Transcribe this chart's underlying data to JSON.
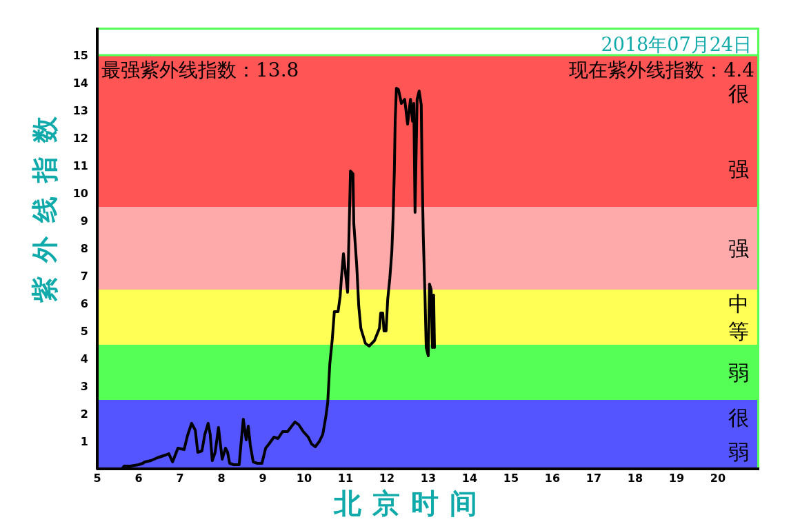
{
  "chart_data": {
    "type": "line",
    "title": "2018年07月24日",
    "xlabel": "北京时间",
    "ylabel": "紫外线指数",
    "annotations": [
      "最强紫外线指数：13.8",
      "现在紫外线指数：4.4"
    ],
    "xlim": [
      5,
      21
    ],
    "xticks": [
      5,
      6,
      7,
      8,
      9,
      10,
      11,
      12,
      13,
      14,
      15,
      16,
      17,
      18,
      19,
      20
    ],
    "ylim": [
      0,
      16
    ],
    "yticks": [
      1,
      2,
      3,
      4,
      5,
      6,
      7,
      8,
      9,
      10,
      11,
      12,
      13,
      14,
      15
    ],
    "bands": [
      {
        "axis": "y",
        "from": 0,
        "to": 2.5,
        "label": "很弱",
        "color": "#5555ff"
      },
      {
        "axis": "y",
        "from": 2.5,
        "to": 4.5,
        "label": "弱",
        "color": "#55ff55"
      },
      {
        "axis": "y",
        "from": 4.5,
        "to": 6.5,
        "label": "中等",
        "color": "#ffff55"
      },
      {
        "axis": "y",
        "from": 6.5,
        "to": 9.5,
        "label": "强",
        "color": "#ffaaaa"
      },
      {
        "axis": "y",
        "from": 9.5,
        "to": 15,
        "label": "很强",
        "color": "#ff5555"
      }
    ],
    "ref_lines": [
      {
        "axis": "y",
        "value": 15,
        "color": "#55ff55"
      }
    ],
    "x": [
      5.0,
      5.6,
      5.65,
      5.8,
      6.0,
      6.1,
      6.15,
      6.3,
      6.45,
      6.65,
      6.73,
      6.82,
      6.95,
      7.1,
      7.18,
      7.28,
      7.37,
      7.43,
      7.53,
      7.6,
      7.68,
      7.73,
      7.78,
      7.85,
      7.93,
      7.98,
      8.02,
      8.1,
      8.15,
      8.2,
      8.3,
      8.43,
      8.48,
      8.53,
      8.6,
      8.65,
      8.7,
      8.77,
      8.87,
      8.98,
      9.07,
      9.15,
      9.27,
      9.37,
      9.48,
      9.6,
      9.7,
      9.78,
      9.87,
      9.98,
      10.1,
      10.18,
      10.27,
      10.37,
      10.45,
      10.52,
      10.57,
      10.62,
      10.68,
      10.73,
      10.82,
      10.87,
      10.9,
      10.95,
      11.0,
      11.05,
      11.07,
      11.12,
      11.18,
      11.2,
      11.27,
      11.32,
      11.37,
      11.48,
      11.57,
      11.7,
      11.82,
      11.85,
      11.9,
      11.93,
      11.98,
      12.02,
      12.07,
      12.12,
      12.15,
      12.18,
      12.2,
      12.23,
      12.28,
      12.35,
      12.43,
      12.5,
      12.57,
      12.62,
      12.65,
      12.68,
      12.73,
      12.78,
      12.83,
      12.85,
      12.88,
      12.92,
      12.95,
      13.0,
      13.03,
      13.07,
      13.1,
      13.13,
      13.15
    ],
    "series": [
      {
        "color": "#000000",
        "values": [
          0,
          0,
          0.1,
          0.1,
          0.15,
          0.2,
          0.25,
          0.3,
          0.4,
          0.5,
          0.55,
          0.25,
          0.75,
          0.7,
          1.2,
          1.65,
          1.4,
          0.6,
          0.65,
          1.25,
          1.65,
          1.25,
          0.3,
          0.6,
          1.5,
          0.85,
          0.35,
          0.75,
          0.6,
          0.2,
          0.15,
          0.15,
          1.0,
          1.8,
          1.05,
          1.55,
          0.85,
          0.25,
          0.2,
          0.2,
          0.75,
          0.9,
          1.15,
          1.1,
          1.35,
          1.35,
          1.55,
          1.7,
          1.6,
          1.35,
          1.15,
          0.9,
          0.8,
          1.0,
          1.25,
          1.85,
          2.4,
          3.8,
          4.7,
          5.7,
          5.7,
          6.25,
          6.9,
          7.8,
          7.1,
          6.4,
          7.6,
          10.8,
          10.7,
          8.9,
          7.4,
          5.9,
          5.1,
          4.55,
          4.45,
          4.65,
          5.1,
          5.65,
          5.65,
          5.0,
          5.0,
          6.15,
          6.9,
          7.9,
          9.1,
          10.8,
          12.6,
          13.8,
          13.75,
          13.25,
          13.4,
          12.5,
          13.4,
          12.6,
          13.25,
          9.3,
          13.4,
          13.7,
          13.2,
          10.9,
          8.4,
          6.3,
          4.4,
          4.1,
          6.7,
          6.5,
          4.4,
          6.3,
          4.4
        ]
      }
    ]
  }
}
